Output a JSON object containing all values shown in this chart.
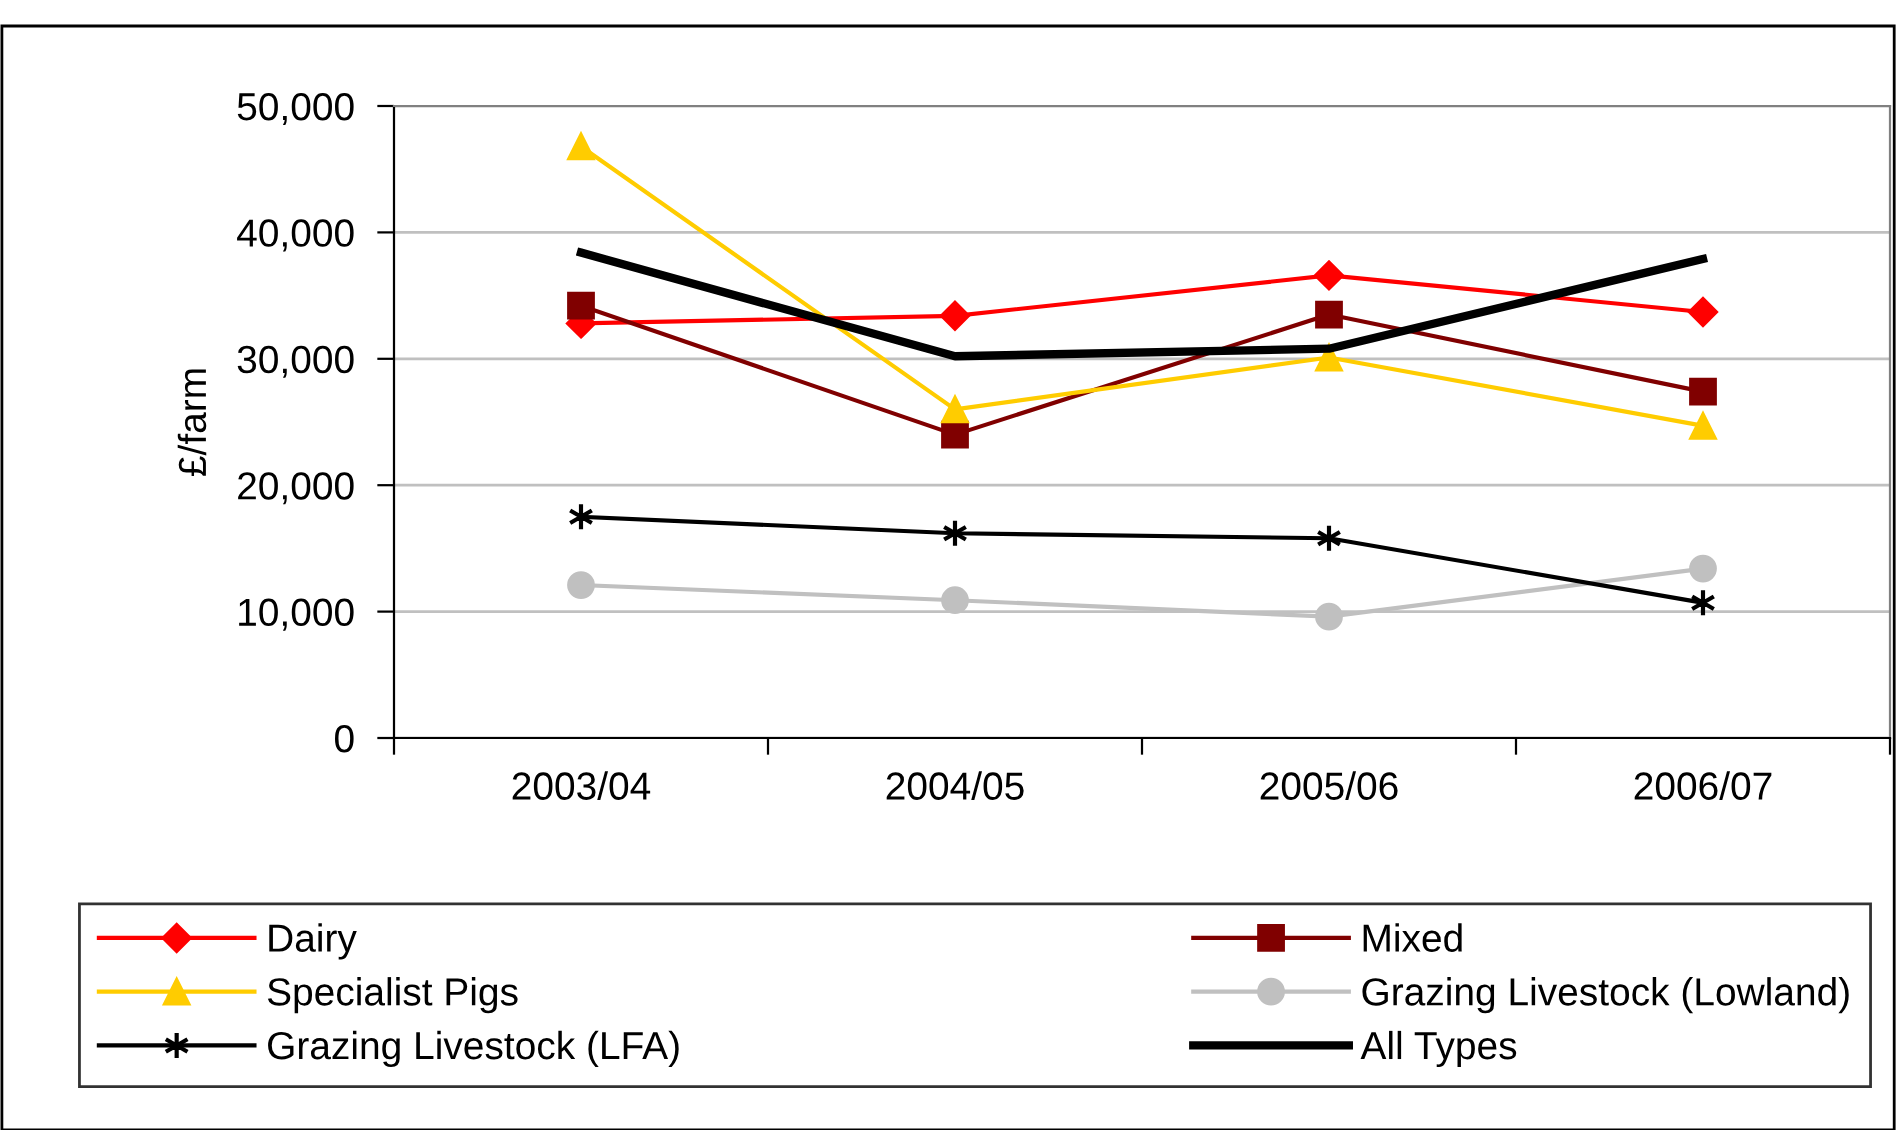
{
  "chart_data": {
    "type": "line",
    "ylabel": "£/farm",
    "categories": [
      "2003/04",
      "2004/05",
      "2005/06",
      "2006/07"
    ],
    "series": [
      {
        "name": "Dairy",
        "color": "#ff0000",
        "marker": "diamond",
        "values": [
          32800,
          33400,
          36600,
          33700
        ]
      },
      {
        "name": "Mixed",
        "color": "#800000",
        "marker": "square",
        "values": [
          34200,
          24000,
          33500,
          27400
        ]
      },
      {
        "name": "Specialist Pigs",
        "color": "#ffcc00",
        "marker": "triangle",
        "values": [
          46800,
          26000,
          30100,
          24700
        ]
      },
      {
        "name": "Grazing Livestock (Lowland)",
        "color": "#c0c0c0",
        "marker": "circle",
        "values": [
          12100,
          10900,
          9600,
          13400
        ]
      },
      {
        "name": "Grazing Livestock (LFA)",
        "color": "#000000",
        "marker": "cross",
        "values": [
          17500,
          16200,
          15800,
          10700
        ]
      },
      {
        "name": "All Types",
        "color": "#000000",
        "marker": "none",
        "values": [
          38400,
          30200,
          30800,
          37900
        ]
      }
    ],
    "ylim": [
      0,
      50000
    ],
    "yticks": [
      {
        "value": 0,
        "label": "0"
      },
      {
        "value": 10000,
        "label": "10,000"
      },
      {
        "value": 20000,
        "label": "20,000"
      },
      {
        "value": 30000,
        "label": "30,000"
      },
      {
        "value": 40000,
        "label": "40,000"
      },
      {
        "value": 50000,
        "label": "50,000"
      }
    ],
    "grid": "y",
    "legend": "bottom"
  }
}
